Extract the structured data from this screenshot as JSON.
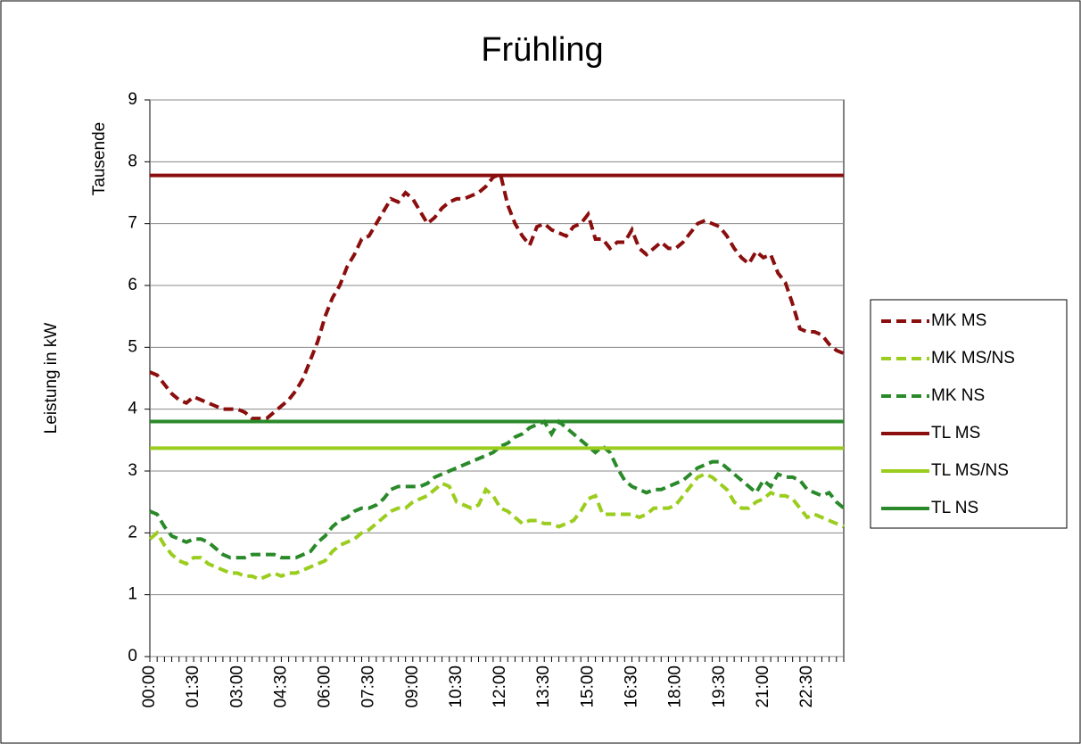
{
  "chart_data": {
    "type": "line",
    "title": "Frühling",
    "y_label": "Leistung in kW",
    "y_unit_label": "Tausende",
    "categories": [
      "00:00",
      null,
      null,
      null,
      null,
      null,
      "01:30",
      null,
      null,
      null,
      null,
      null,
      "03:00",
      null,
      null,
      null,
      null,
      null,
      "04:30",
      null,
      null,
      null,
      null,
      null,
      "06:00",
      null,
      null,
      null,
      null,
      null,
      "07:30",
      null,
      null,
      null,
      null,
      null,
      "09:00",
      null,
      null,
      null,
      null,
      null,
      "10:30",
      null,
      null,
      null,
      null,
      null,
      "12:00",
      null,
      null,
      null,
      null,
      null,
      "13:30",
      null,
      null,
      null,
      null,
      null,
      "15:00",
      null,
      null,
      null,
      null,
      null,
      "16:30",
      null,
      null,
      null,
      null,
      null,
      "18:00",
      null,
      null,
      null,
      null,
      null,
      "19:30",
      null,
      null,
      null,
      null,
      null,
      "21:00",
      null,
      null,
      null,
      null,
      null,
      "22:30",
      null,
      null,
      null,
      null,
      null
    ],
    "ylim": [
      0,
      9
    ],
    "yticks": [
      0,
      1,
      2,
      3,
      4,
      5,
      6,
      7,
      8,
      9
    ],
    "grid": true,
    "legend": "right",
    "series": [
      {
        "name": "MK MS",
        "color": "#8b0e0e",
        "dashed": true,
        "values": [
          4.6,
          4.55,
          4.4,
          4.25,
          4.15,
          4.1,
          4.2,
          4.15,
          4.1,
          4.05,
          4.0,
          4.0,
          4.0,
          3.95,
          3.85,
          3.85,
          3.85,
          3.95,
          4.05,
          4.15,
          4.3,
          4.5,
          4.8,
          5.1,
          5.5,
          5.8,
          6.0,
          6.3,
          6.5,
          6.75,
          6.8,
          7.0,
          7.2,
          7.4,
          7.35,
          7.5,
          7.4,
          7.2,
          7.0,
          7.1,
          7.25,
          7.35,
          7.4,
          7.4,
          7.45,
          7.5,
          7.6,
          7.75,
          7.8,
          7.3,
          7.0,
          6.8,
          6.65,
          6.95,
          7.0,
          6.9,
          6.85,
          6.8,
          6.95,
          7.0,
          7.15,
          6.75,
          6.75,
          6.6,
          6.7,
          6.7,
          6.9,
          6.6,
          6.5,
          6.6,
          6.7,
          6.6,
          6.6,
          6.7,
          6.85,
          7.0,
          7.05,
          7.0,
          6.95,
          6.8,
          6.6,
          6.45,
          6.35,
          6.55,
          6.45,
          6.5,
          6.2,
          6.05,
          5.7,
          5.3,
          5.25,
          5.25,
          5.2,
          5.05,
          4.95,
          4.9
        ]
      },
      {
        "name": "MK MS/NS",
        "color": "#9acd1e",
        "dashed": true,
        "values": [
          1.9,
          2.0,
          1.8,
          1.65,
          1.55,
          1.5,
          1.6,
          1.6,
          1.5,
          1.45,
          1.4,
          1.35,
          1.35,
          1.3,
          1.3,
          1.25,
          1.3,
          1.35,
          1.3,
          1.35,
          1.35,
          1.4,
          1.45,
          1.5,
          1.55,
          1.7,
          1.8,
          1.85,
          1.9,
          2.0,
          2.05,
          2.15,
          2.25,
          2.35,
          2.4,
          2.4,
          2.5,
          2.55,
          2.6,
          2.7,
          2.8,
          2.75,
          2.5,
          2.45,
          2.4,
          2.45,
          2.7,
          2.6,
          2.4,
          2.35,
          2.25,
          2.15,
          2.2,
          2.2,
          2.15,
          2.15,
          2.1,
          2.15,
          2.2,
          2.35,
          2.55,
          2.6,
          2.3,
          2.3,
          2.3,
          2.3,
          2.3,
          2.25,
          2.3,
          2.4,
          2.4,
          2.4,
          2.45,
          2.6,
          2.75,
          2.9,
          2.95,
          2.9,
          2.8,
          2.7,
          2.5,
          2.4,
          2.4,
          2.5,
          2.55,
          2.65,
          2.6,
          2.6,
          2.55,
          2.4,
          2.25,
          2.3,
          2.25,
          2.2,
          2.15,
          2.1
        ]
      },
      {
        "name": "MK NS",
        "color": "#2a8a2a",
        "dashed": true,
        "values": [
          2.35,
          2.3,
          2.1,
          1.95,
          1.9,
          1.85,
          1.9,
          1.9,
          1.85,
          1.75,
          1.65,
          1.6,
          1.6,
          1.6,
          1.65,
          1.65,
          1.65,
          1.65,
          1.6,
          1.6,
          1.6,
          1.65,
          1.7,
          1.85,
          1.95,
          2.1,
          2.2,
          2.25,
          2.35,
          2.4,
          2.4,
          2.45,
          2.55,
          2.7,
          2.75,
          2.75,
          2.75,
          2.75,
          2.8,
          2.9,
          2.95,
          3.0,
          3.05,
          3.1,
          3.15,
          3.2,
          3.25,
          3.3,
          3.4,
          3.45,
          3.55,
          3.6,
          3.7,
          3.75,
          3.8,
          3.6,
          3.8,
          3.7,
          3.6,
          3.5,
          3.4,
          3.3,
          3.4,
          3.3,
          3.05,
          2.85,
          2.75,
          2.7,
          2.65,
          2.7,
          2.7,
          2.75,
          2.8,
          2.85,
          2.95,
          3.05,
          3.1,
          3.15,
          3.15,
          3.05,
          2.95,
          2.85,
          2.75,
          2.65,
          2.85,
          2.75,
          2.95,
          2.9,
          2.9,
          2.85,
          2.7,
          2.65,
          2.6,
          2.65,
          2.5,
          2.4
        ]
      },
      {
        "name": "TL MS",
        "color": "#8b0e0e",
        "dashed": false,
        "level": 7.78
      },
      {
        "name": "TL MS/NS",
        "color": "#9acd1e",
        "dashed": false,
        "level": 3.37
      },
      {
        "name": "TL NS",
        "color": "#2a8a2a",
        "dashed": false,
        "level": 3.8
      }
    ]
  }
}
